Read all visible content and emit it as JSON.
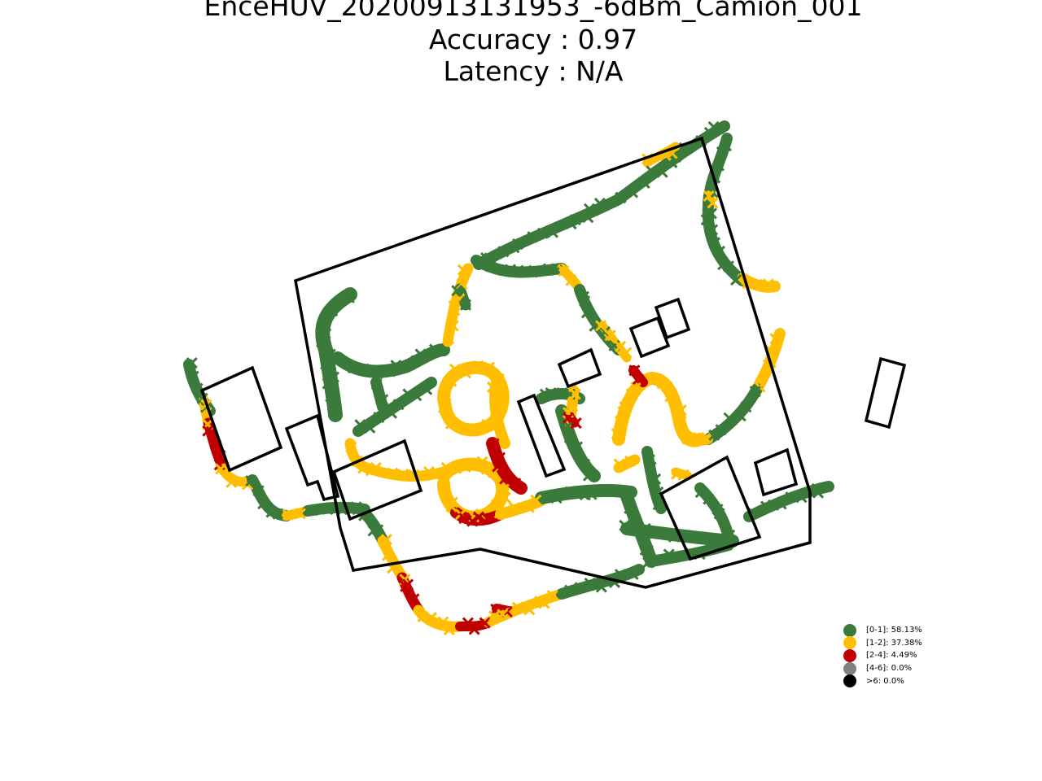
{
  "chart_data": {
    "type": "scatter",
    "title": "EnceHUV_20200913131953_-6dBm_Camion_001",
    "subtitle_lines": [
      "Accuracy : 0.97",
      "Latency : N/A"
    ],
    "marker": "x",
    "grid": false,
    "axes_visible": false,
    "legend_position": "lower-right",
    "legend": [
      {
        "label": "[0-1]: 58.13%",
        "color": "#3a7a3a"
      },
      {
        "label": "[1-2]: 37.38%",
        "color": "#ffbf00"
      },
      {
        "label": "[2-4]: 4.49%",
        "color": "#c00000"
      },
      {
        "label": "[4-6]: 0.0%",
        "color": "#808080"
      },
      {
        "label": ">6: 0.0%",
        "color": "#000000"
      }
    ],
    "error_class_shares": {
      "0-1": 58.13,
      "1-2": 37.38,
      "2-4": 4.49,
      "4-6": 0.0,
      ">6": 0.0
    }
  }
}
